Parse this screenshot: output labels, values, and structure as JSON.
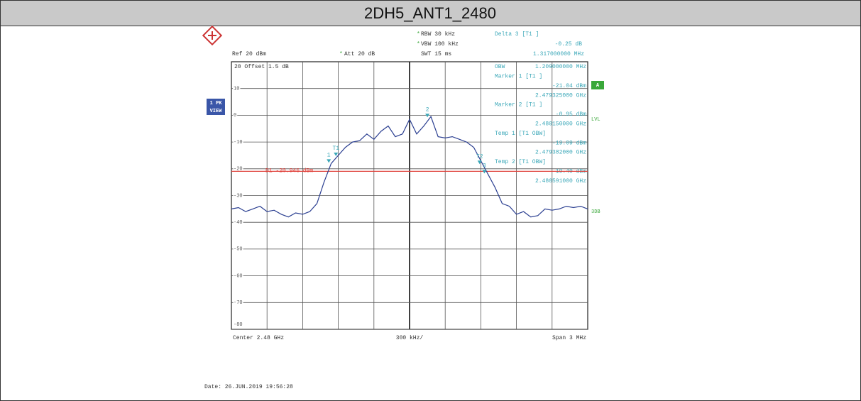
{
  "chart_data": {
    "type": "line",
    "title": "2DH5_ANT1_2480",
    "header": {
      "rbw": "RBW 30 kHz",
      "vbw": "VBW 100 kHz",
      "swt": "SWT 15 ms",
      "ref": "Ref 20 dBm",
      "att": "Att 20 dB",
      "star": "*",
      "delta": "Delta 3 [T1 ]",
      "delta_level": "-0.25 dB",
      "delta_freq": "1.317000000 MHz",
      "offset": "20  Offset  1.5 dB"
    },
    "panel": [
      "OBW",
      "1.209000000 MHz",
      "Marker 1 [T1 ]",
      "-21.04 dBm",
      "2.479325000 GHz",
      "Marker 2 [T1 ]",
      "-0.95 dBm",
      "2.480150000 GHz",
      "Temp 1 [T1 OBW]",
      "-19.09 dBm",
      "2.479382000 GHz",
      "Temp 2 [T1 OBW]",
      "-19.40 dBm",
      "2.480591000 GHz"
    ],
    "side": {
      "trace": "1 PK",
      "view": "VIEW",
      "a": "A",
      "lvl": "LVL",
      "db3": "3DB"
    },
    "footer": {
      "center": "Center 2.48 GHz",
      "div": "300 kHz/",
      "span": "Span 3 MHz",
      "date": "Date: 26.JUN.2019  19:56:28"
    },
    "display_line": {
      "label": "D1  -20.946 dBm",
      "value": -20.946,
      "color": "#e0413a"
    },
    "xlim": [
      2.4785,
      2.4815
    ],
    "ylim": [
      -80,
      20
    ],
    "yticks": [
      -80,
      -70,
      -60,
      -50,
      -40,
      -30,
      -20,
      -10,
      0,
      10
    ],
    "grid": true,
    "x": [
      2.4785,
      2.47856,
      2.47862,
      2.47868,
      2.47874,
      2.4788,
      2.47886,
      2.47892,
      2.47898,
      2.47904,
      2.4791,
      2.47916,
      2.47922,
      2.47928,
      2.47934,
      2.4794,
      2.47946,
      2.47952,
      2.47958,
      2.47964,
      2.4797,
      2.47976,
      2.47982,
      2.47988,
      2.47994,
      2.48,
      2.48006,
      2.48012,
      2.48018,
      2.48024,
      2.4803,
      2.48036,
      2.48042,
      2.48048,
      2.48054,
      2.4806,
      2.48066,
      2.48072,
      2.48078,
      2.48084,
      2.4809,
      2.48096,
      2.48102,
      2.48108,
      2.48114,
      2.4812,
      2.48126,
      2.48132,
      2.48138,
      2.48144,
      2.4815
    ],
    "series": [
      {
        "color": "#2b3f91",
        "values": [
          -35,
          -34.5,
          -36,
          -35,
          -34,
          -36,
          -35.5,
          -37,
          -38,
          -36.5,
          -37,
          -36,
          -33,
          -25,
          -18,
          -15,
          -12,
          -10,
          -9.5,
          -7,
          -9,
          -6,
          -4,
          -8,
          -7,
          -1.5,
          -7,
          -4,
          -0.5,
          -8,
          -8.5,
          -8,
          -9,
          -10,
          -12,
          -17,
          -22,
          -27,
          -33,
          -34,
          -37,
          -36,
          -38,
          -37.5,
          -35,
          -35.5,
          -35,
          -34,
          -34.5,
          -34,
          -35
        ]
      }
    ],
    "markers": [
      {
        "label": "1",
        "x": 2.47932,
        "y": -17.5
      },
      {
        "label": "T1",
        "x": 2.47938,
        "y": -15
      },
      {
        "label": "2",
        "x": 2.48015,
        "y": -0.5
      },
      {
        "label": "T2",
        "x": 2.48059,
        "y": -18
      },
      {
        "label": "3",
        "x": 2.48063,
        "y": -21.5
      }
    ]
  }
}
